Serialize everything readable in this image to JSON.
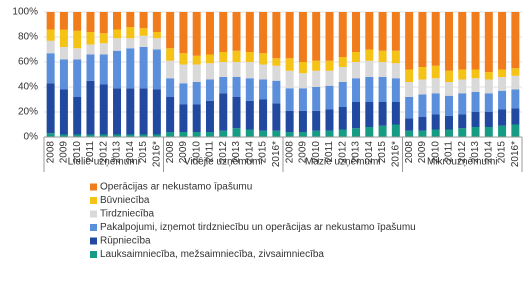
{
  "chart_data": {
    "type": "stacked_bar_100",
    "category_groups": [
      "Lielie uzņēmumi",
      "Vidējie uzņēmumi",
      "Mazie uzņēmumi",
      "Mikrouzņēmumi"
    ],
    "categories": [
      "2008",
      "2009",
      "2010",
      "2011",
      "2012",
      "2013",
      "2014",
      "2015",
      "2016*",
      "2008",
      "2009",
      "2010",
      "2011",
      "2012",
      "2013",
      "2014",
      "2015",
      "2016*",
      "2008",
      "2009",
      "2010",
      "2011",
      "2012",
      "2013",
      "2014",
      "2015",
      "2016*",
      "2008",
      "2009",
      "2010",
      "2011",
      "2012",
      "2013",
      "2014",
      "2015",
      "2016*"
    ],
    "series": [
      {
        "name": "Lauksaimniecība, mežsaimniecība, zivsaimniecība",
        "color": "#169c84",
        "values": [
          3,
          2,
          2,
          2,
          2,
          2,
          2,
          2,
          2,
          4,
          4,
          4,
          4,
          5,
          7,
          6,
          5,
          5,
          4,
          4,
          5,
          5,
          6,
          7,
          8,
          9,
          10,
          5,
          5,
          6,
          6,
          7,
          8,
          8,
          9,
          10
        ]
      },
      {
        "name": "Rūpniecība",
        "color": "#2149a0",
        "values": [
          40,
          36,
          30,
          43,
          40,
          37,
          37,
          37,
          36,
          28,
          22,
          22,
          25,
          30,
          25,
          23,
          25,
          22,
          17,
          17,
          16,
          17,
          18,
          21,
          20,
          19,
          18,
          10,
          11,
          12,
          11,
          11,
          12,
          12,
          13,
          13
        ]
      },
      {
        "name": "Pakalpojumi, izņemot tirdzniecību un operācijas ar nekustamo īpašumu",
        "color": "#5b8fdc",
        "values": [
          24,
          24,
          30,
          21,
          24,
          30,
          32,
          33,
          32,
          15,
          17,
          18,
          17,
          13,
          16,
          18,
          16,
          18,
          18,
          18,
          19,
          19,
          20,
          19,
          20,
          20,
          19,
          17,
          18,
          17,
          16,
          17,
          16,
          15,
          15,
          15
        ]
      },
      {
        "name": "Tirdzniecība",
        "color": "#d9d9d9",
        "values": [
          10,
          10,
          9,
          8,
          9,
          10,
          8,
          9,
          9,
          14,
          15,
          14,
          13,
          12,
          12,
          13,
          12,
          12,
          14,
          12,
          13,
          12,
          12,
          13,
          13,
          12,
          12,
          12,
          12,
          12,
          11,
          11,
          11,
          11,
          11,
          11
        ]
      },
      {
        "name": "Būvniecība",
        "color": "#f5c216",
        "values": [
          9,
          14,
          14,
          10,
          8,
          7,
          9,
          6,
          5,
          10,
          9,
          7,
          7,
          8,
          9,
          8,
          9,
          6,
          10,
          9,
          8,
          8,
          8,
          8,
          9,
          9,
          10,
          10,
          10,
          10,
          9,
          8,
          7,
          6,
          6,
          6
        ]
      },
      {
        "name": "Operācijas ar nekustamo īpašumu",
        "color": "#f07c1c",
        "values": [
          14,
          14,
          15,
          16,
          17,
          14,
          12,
          13,
          16,
          29,
          33,
          35,
          34,
          32,
          31,
          32,
          33,
          37,
          37,
          40,
          39,
          39,
          36,
          32,
          30,
          31,
          31,
          46,
          44,
          43,
          47,
          46,
          46,
          48,
          46,
          45
        ]
      }
    ],
    "ylim": [
      0,
      100
    ],
    "yticks": [
      {
        "value": 0,
        "label": "0%"
      },
      {
        "value": 20,
        "label": "20%"
      },
      {
        "value": 40,
        "label": "40%"
      },
      {
        "value": 60,
        "label": "60%"
      },
      {
        "value": 80,
        "label": "80%"
      },
      {
        "value": 100,
        "label": "100%"
      }
    ],
    "grid": true
  }
}
